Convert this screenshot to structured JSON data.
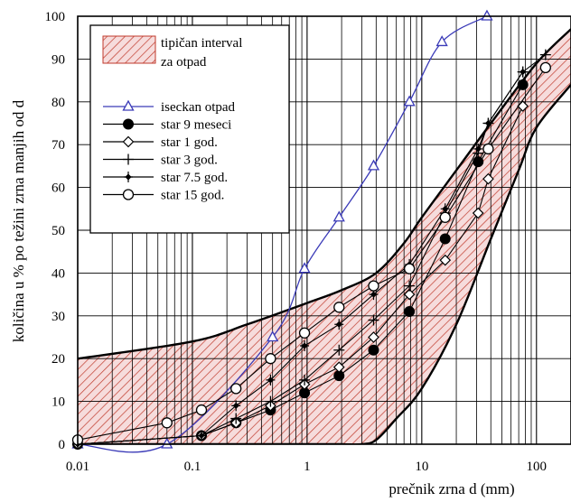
{
  "chart_data": {
    "type": "line",
    "title": "",
    "xlabel": "prečnik zrna  d  (mm)",
    "ylabel": "količina u % po težini zrna manjih od  d",
    "xscale": "log",
    "xlim": [
      0.01,
      200
    ],
    "ylim": [
      0,
      100
    ],
    "x_ticks": [
      0.01,
      0.1,
      1,
      10,
      100
    ],
    "x_tick_labels": [
      "0.01",
      "0.1",
      "1",
      "10",
      "100"
    ],
    "y_ticks": [
      0,
      10,
      20,
      30,
      40,
      50,
      60,
      70,
      80,
      90,
      100
    ],
    "y_tick_labels": [
      "0",
      "10",
      "20",
      "30",
      "40",
      "50",
      "60",
      "70",
      "80",
      "90",
      "100"
    ],
    "grid": true,
    "legend_position": "top-left",
    "band": {
      "name_line1": "tipičan interval",
      "name_line2": "za otpad",
      "color": "#c0392b",
      "fill": "#f6dcdc",
      "upper": [
        [
          0.01,
          20
        ],
        [
          0.1,
          24
        ],
        [
          0.3,
          28
        ],
        [
          1,
          33
        ],
        [
          2,
          36
        ],
        [
          4,
          40
        ],
        [
          7,
          47
        ],
        [
          10,
          53
        ],
        [
          20,
          64
        ],
        [
          40,
          75
        ],
        [
          100,
          89
        ],
        [
          200,
          97
        ]
      ],
      "lower": [
        [
          0.01,
          0
        ],
        [
          1,
          0
        ],
        [
          2,
          0
        ],
        [
          3,
          0
        ],
        [
          4,
          1
        ],
        [
          6,
          6
        ],
        [
          10,
          13
        ],
        [
          20,
          28
        ],
        [
          40,
          48
        ],
        [
          70,
          64
        ],
        [
          100,
          74
        ],
        [
          200,
          84
        ]
      ]
    },
    "series": [
      {
        "name": "iseckan otpad",
        "marker": "triangle",
        "color": "#3b3bb8",
        "smooth": true,
        "x": [
          0.01,
          0.06,
          0.5,
          0.95,
          1.9,
          3.8,
          7.8,
          15,
          37
        ],
        "y": [
          0,
          0,
          25,
          41,
          53,
          65,
          80,
          94,
          100
        ]
      },
      {
        "name": "star 9 meseci",
        "marker": "filled-circle",
        "color": "#000000",
        "x": [
          0.01,
          0.12,
          0.24,
          0.48,
          0.95,
          1.9,
          3.8,
          7.8,
          16,
          31,
          76
        ],
        "y": [
          0,
          2,
          5,
          8,
          12,
          16,
          22,
          31,
          48,
          66,
          84
        ]
      },
      {
        "name": "star 1 god.",
        "marker": "diamond",
        "color": "#000000",
        "x": [
          0.01,
          0.12,
          0.24,
          0.48,
          0.95,
          1.9,
          3.8,
          7.8,
          16,
          31,
          38,
          76
        ],
        "y": [
          0,
          2,
          5,
          9,
          14,
          18,
          25,
          35,
          43,
          54,
          62,
          79
        ]
      },
      {
        "name": "star 3 god.",
        "marker": "plus",
        "color": "#000000",
        "x": [
          0.01,
          0.12,
          0.24,
          0.48,
          0.95,
          1.9,
          3.8,
          7.8,
          16,
          31,
          38,
          76,
          120
        ],
        "y": [
          0,
          2,
          6,
          10,
          15,
          22,
          29,
          37,
          54,
          68,
          75,
          87,
          91
        ]
      },
      {
        "name": "star 7.5 god.",
        "marker": "star",
        "color": "#000000",
        "x": [
          0.01,
          0.12,
          0.24,
          0.48,
          0.95,
          1.9,
          3.8,
          7.8,
          16,
          31,
          38,
          76
        ],
        "y": [
          0,
          2,
          9,
          15,
          23,
          28,
          35,
          42,
          55,
          69,
          75,
          87
        ]
      },
      {
        "name": "star 15 god.",
        "marker": "open-circle",
        "color": "#000000",
        "x": [
          0.01,
          0.06,
          0.12,
          0.24,
          0.48,
          0.95,
          1.9,
          3.8,
          7.8,
          16,
          38,
          120
        ],
        "y": [
          1,
          5,
          8,
          13,
          20,
          26,
          32,
          37,
          41,
          53,
          69,
          88
        ]
      }
    ]
  }
}
